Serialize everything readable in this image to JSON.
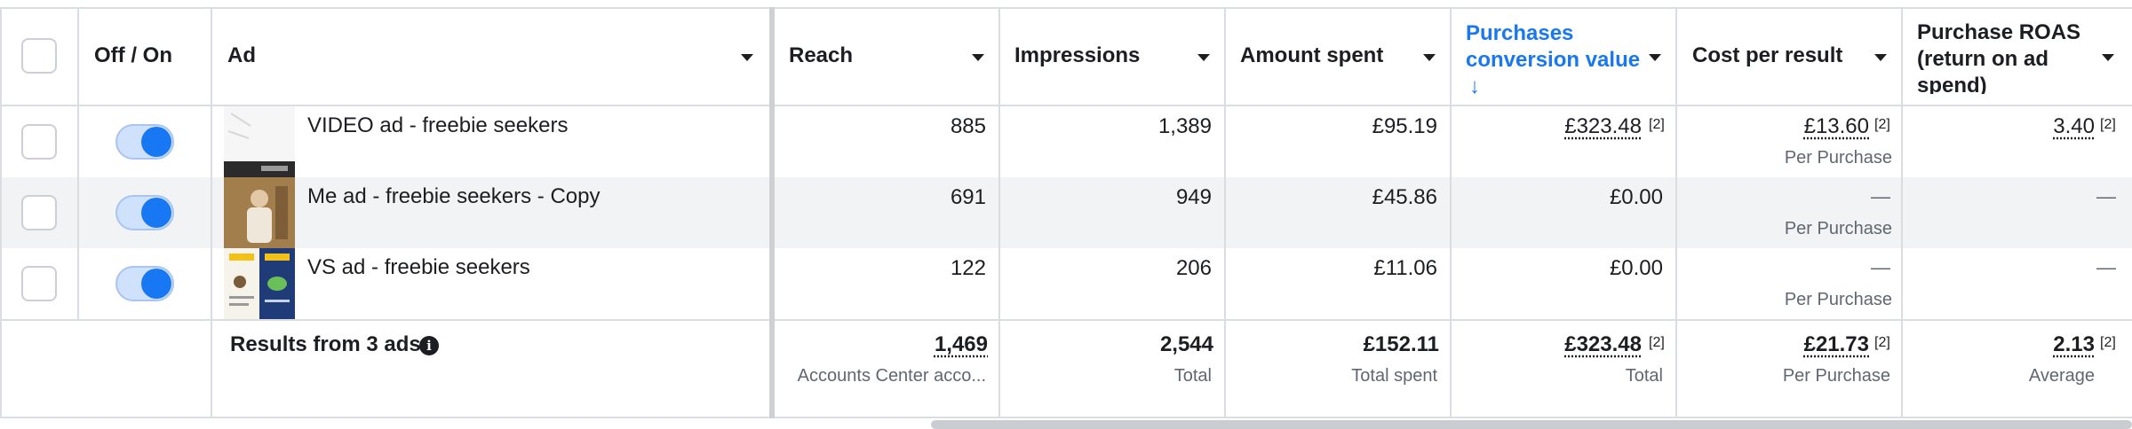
{
  "columns": {
    "off_on": "Off / On",
    "ad": "Ad",
    "reach": "Reach",
    "impressions": "Impressions",
    "amount_spent": "Amount spent",
    "purchases_value_1": "Purchases",
    "purchases_value_2": "conversion value",
    "purchases_sort_arrow": "↓",
    "cost_per_result": "Cost per result",
    "roas_1": "Purchase ROAS",
    "roas_2": "(return on ad",
    "roas_3": "spend)"
  },
  "rows": [
    {
      "name": "VIDEO ad - freebie seekers",
      "toggle_on": true,
      "reach": "885",
      "impressions": "1,389",
      "amount_spent": "£95.19",
      "purchases_value": "£323.48",
      "purchases_value_sup": "[2]",
      "cost_per_result": "£13.60",
      "cost_per_result_sup": "[2]",
      "cost_per_result_sub": "Per Purchase",
      "roas": "3.40",
      "roas_sup": "[2]"
    },
    {
      "name": "Me ad - freebie seekers - Copy",
      "toggle_on": true,
      "reach": "691",
      "impressions": "949",
      "amount_spent": "£45.86",
      "purchases_value": "£0.00",
      "cost_per_result": "—",
      "cost_per_result_sub": "Per Purchase",
      "roas": "—"
    },
    {
      "name": "VS ad - freebie seekers",
      "toggle_on": true,
      "reach": "122",
      "impressions": "206",
      "amount_spent": "£11.06",
      "purchases_value": "£0.00",
      "cost_per_result": "—",
      "cost_per_result_sub": "Per Purchase",
      "roas": "—"
    }
  ],
  "totals": {
    "label": "Results from 3 ads",
    "info_icon": "i",
    "reach": "1,469",
    "reach_sub": "Accounts Center acco...",
    "impressions": "2,544",
    "impressions_sub": "Total",
    "amount_spent": "£152.11",
    "amount_spent_sub": "Total spent",
    "purchases_value": "£323.48",
    "purchases_value_sup": "[2]",
    "purchases_value_sub": "Total",
    "cost_per_result": "£21.73",
    "cost_per_result_sup": "[2]",
    "cost_per_result_sub": "Per Purchase",
    "roas": "2.13",
    "roas_sup": "[2]",
    "roas_sub": "Average"
  },
  "colors": {
    "accent": "#1877f2",
    "row_alt": "#f2f3f5",
    "border": "#dadde1"
  },
  "icons": [
    "checkbox-icon",
    "toggle-icon",
    "caret-down-icon",
    "arrow-down-icon",
    "info-icon"
  ]
}
